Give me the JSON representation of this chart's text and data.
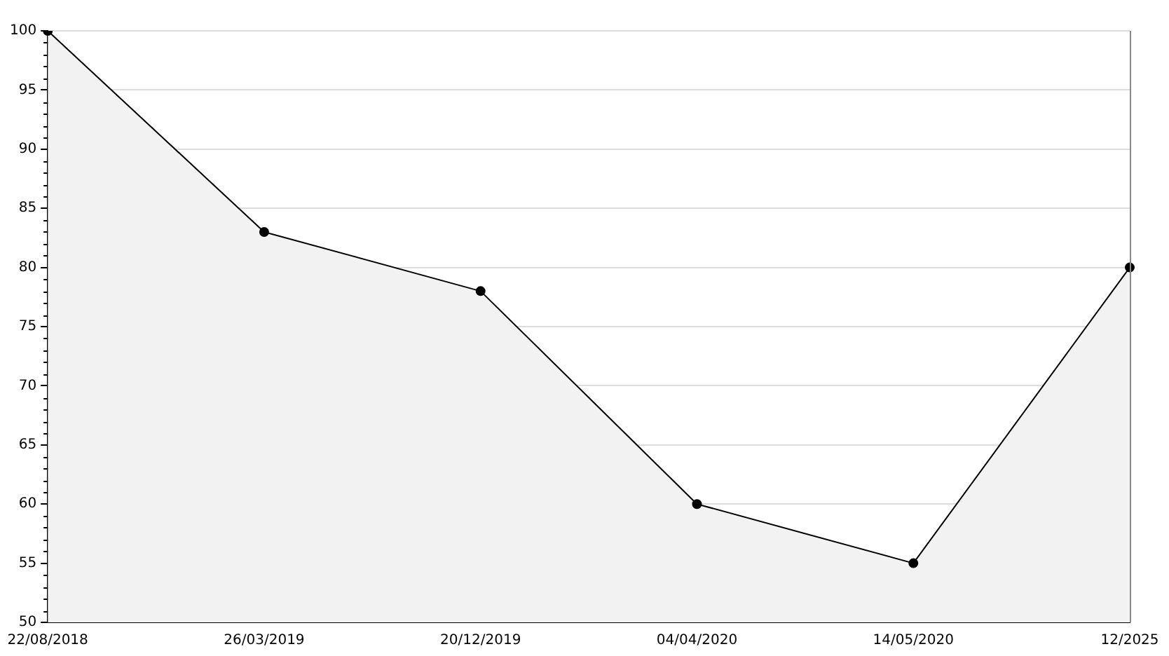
{
  "chart_data": {
    "type": "area",
    "categories": [
      "22/08/2018",
      "26/03/2019",
      "20/12/2019",
      "04/04/2020",
      "14/05/2020",
      "12/2025"
    ],
    "series": [
      {
        "color": "#000000",
        "values": [
          100,
          83,
          78,
          60,
          55,
          80
        ]
      }
    ],
    "ylim": [
      50,
      100
    ],
    "yticks": [
      50,
      55,
      60,
      65,
      70,
      75,
      80,
      85,
      90,
      95,
      100
    ],
    "grid": "y",
    "marker": "circle",
    "line_style": "solid"
  }
}
